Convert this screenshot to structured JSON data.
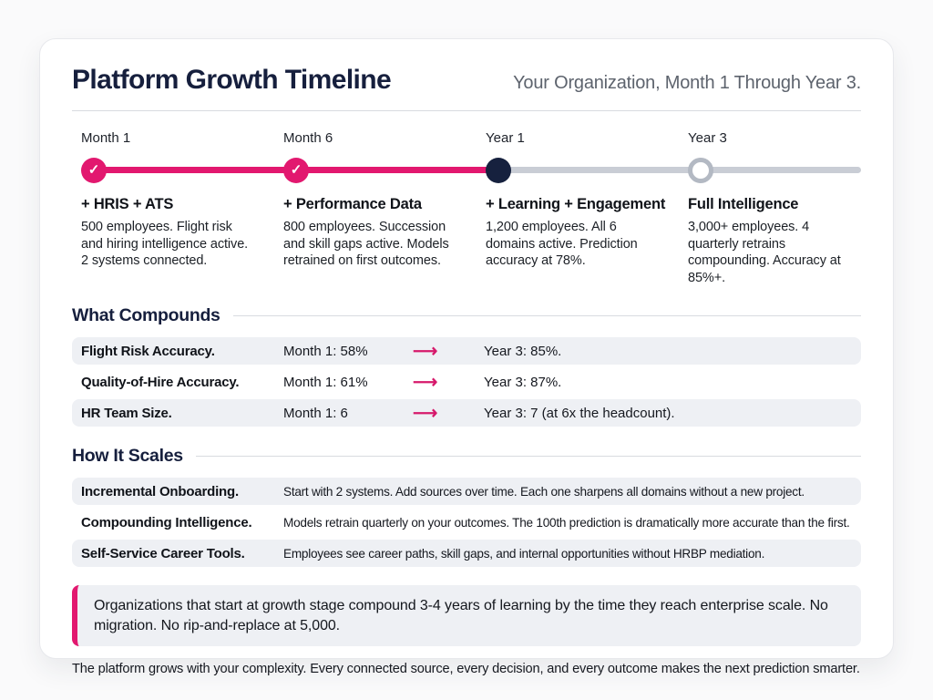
{
  "header": {
    "title": "Platform Growth Timeline",
    "subtitle": "Your Organization, Month 1 Through Year 3."
  },
  "timeline": {
    "milestones": [
      {
        "label": "Month 1",
        "state": "done",
        "title": "+ HRIS + ATS",
        "description": "500 employees. Flight risk and hiring intelligence active. 2 systems connected."
      },
      {
        "label": "Month 6",
        "state": "done",
        "title": "+ Performance Data",
        "description": "800 employees. Succession and skill gaps active. Models retrained on first outcomes."
      },
      {
        "label": "Year 1",
        "state": "current",
        "title": "+ Learning + Engagement",
        "description": "1,200 employees. All 6 domains active. Prediction accuracy at 78%."
      },
      {
        "label": "Year 3",
        "state": "future",
        "title": "Full Intelligence",
        "description": "3,000+ employees. 4 quarterly retrains compounding. Accuracy at 85%+."
      }
    ]
  },
  "what_compounds": {
    "heading": "What Compounds",
    "rows": [
      {
        "label": "Flight Risk Accuracy.",
        "from": "Month 1: 58%",
        "to": "Year 3: 85%."
      },
      {
        "label": "Quality-of-Hire Accuracy.",
        "from": "Month 1: 61%",
        "to": "Year 3: 87%."
      },
      {
        "label": "HR Team Size.",
        "from": "Month 1: 6",
        "to": "Year 3: 7 (at 6x the headcount)."
      }
    ]
  },
  "how_it_scales": {
    "heading": "How It Scales",
    "rows": [
      {
        "label": "Incremental Onboarding.",
        "description": "Start with 2 systems. Add sources over time. Each one sharpens all domains without a new project."
      },
      {
        "label": "Compounding Intelligence.",
        "description": "Models retrain quarterly on your outcomes. The 100th prediction is dramatically more accurate than the first."
      },
      {
        "label": "Self-Service Career Tools.",
        "description": "Employees see career paths, skill gaps, and internal opportunities without HRBP mediation."
      }
    ]
  },
  "callout": {
    "text": "Organizations that start at growth stage compound 3-4 years of learning by the time they reach enterprise scale. No migration. No rip-and-replace at 5,000."
  },
  "footer": {
    "text": "The platform grows with your complexity. Every connected source, every decision, and every outcome makes the next prediction smarter."
  },
  "icons": {
    "check": "✓",
    "arrow_right": "⟶"
  },
  "colors": {
    "accent_pink": "#e2186f",
    "navy": "#161f3d",
    "row_background": "#eef0f4",
    "track_gray": "#c9cdd5",
    "subtitle_gray": "#5d636d"
  }
}
